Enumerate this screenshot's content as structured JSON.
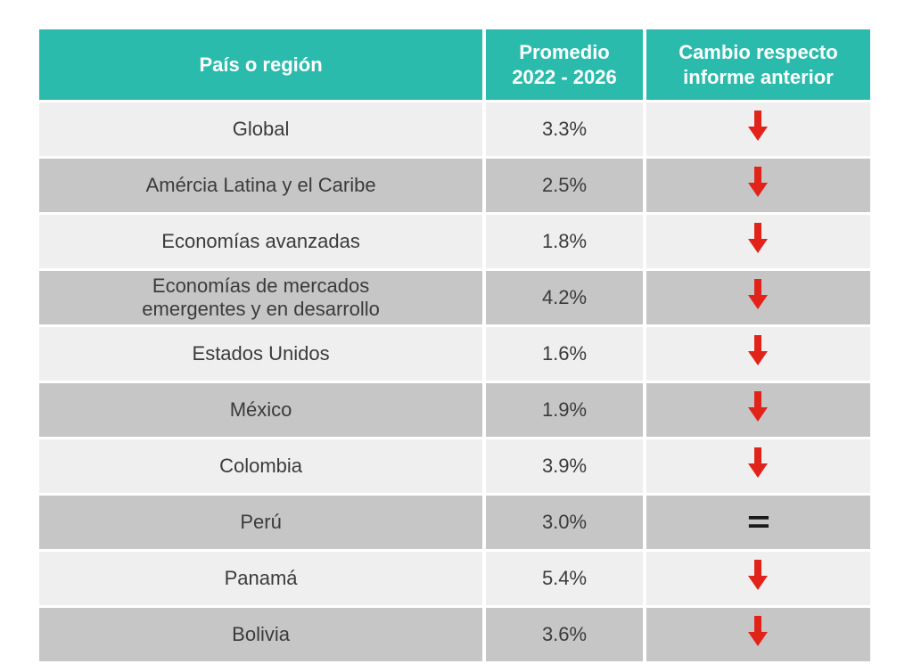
{
  "table": {
    "header_bg": "#2bbbad",
    "header_color": "#ffffff",
    "row_light_bg": "#efefef",
    "row_dark_bg": "#c6c6c6",
    "text_color": "#3b3b3b",
    "arrow_color": "#e2231a",
    "equal_color": "#1a1a1a",
    "columns": {
      "country": "País o región",
      "avg_line1": "Promedio",
      "avg_line2": "2022 - 2026",
      "change_line1": "Cambio respecto",
      "change_line2": "informe anterior"
    },
    "rows": [
      {
        "country": "Global",
        "avg": "3.3%",
        "change": "down"
      },
      {
        "country": "Amércia Latina y el Caribe",
        "avg": "2.5%",
        "change": "down"
      },
      {
        "country": "Economías avanzadas",
        "avg": "1.8%",
        "change": "down"
      },
      {
        "country_line1": "Economías de mercados",
        "country_line2": "emergentes y en desarrollo",
        "avg": "4.2%",
        "change": "down"
      },
      {
        "country": "Estados Unidos",
        "avg": "1.6%",
        "change": "down"
      },
      {
        "country": "México",
        "avg": "1.9%",
        "change": "down"
      },
      {
        "country": "Colombia",
        "avg": "3.9%",
        "change": "down"
      },
      {
        "country": "Perú",
        "avg": "3.0%",
        "change": "equal"
      },
      {
        "country": "Panamá",
        "avg": "5.4%",
        "change": "down"
      },
      {
        "country": "Bolivia",
        "avg": "3.6%",
        "change": "down"
      }
    ]
  }
}
